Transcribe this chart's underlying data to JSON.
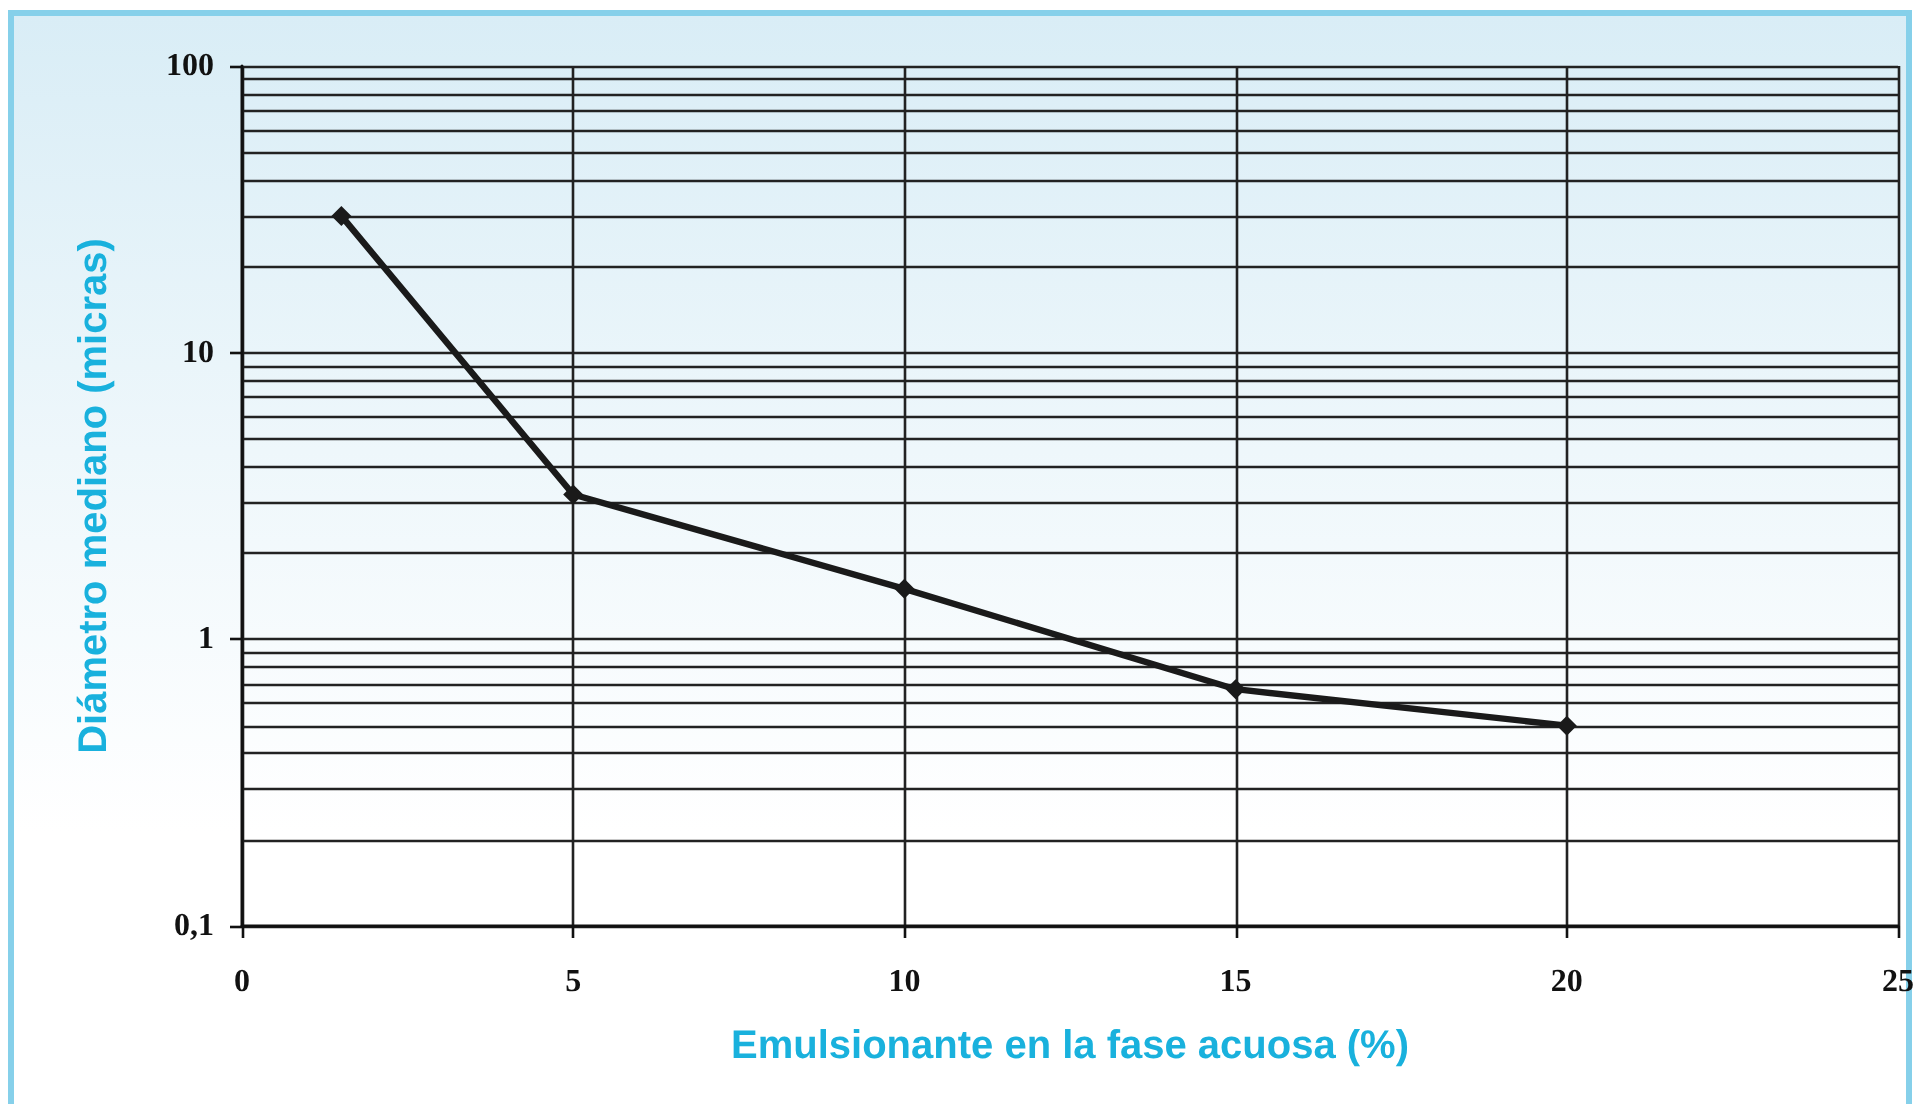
{
  "chart_data": {
    "type": "line",
    "xlabel": "Emulsionante en la fase acuosa (%)",
    "ylabel": "Diámetro mediano (micras)",
    "x": [
      1.5,
      5,
      10,
      15,
      20
    ],
    "series": [
      {
        "color": "#1a1a1a",
        "values": [
          30,
          3.2,
          1.5,
          0.67,
          0.5
        ]
      }
    ],
    "xlim": [
      0,
      25
    ],
    "xticks": [
      0,
      5,
      10,
      15,
      20,
      25
    ],
    "ylim": [
      0.1,
      100
    ],
    "yticks": [
      {
        "value": 0.1,
        "label": "0,1"
      },
      1,
      10,
      100
    ],
    "log": "y",
    "grid": true,
    "marker": "diamond",
    "line_style": "solid"
  }
}
